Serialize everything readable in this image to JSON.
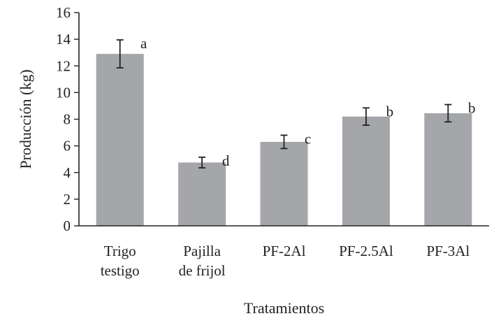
{
  "chart_data": {
    "type": "bar",
    "title": "",
    "xlabel": "Tratamientos",
    "ylabel": "Producción (kg)",
    "ylim": [
      0,
      16
    ],
    "yticks": [
      0,
      2,
      4,
      6,
      8,
      10,
      12,
      14,
      16
    ],
    "grid": false,
    "categories": [
      [
        "Trigo",
        "testigo"
      ],
      [
        "Pajilla",
        "de frijol"
      ],
      [
        "PF-2Al"
      ],
      [
        "PF-2.5Al"
      ],
      [
        "PF-3Al"
      ]
    ],
    "values": [
      12.9,
      4.75,
      6.3,
      8.2,
      8.45
    ],
    "error": [
      1.05,
      0.4,
      0.5,
      0.65,
      0.65
    ],
    "significance_letters": [
      "a",
      "d",
      "c",
      "b",
      "b"
    ],
    "colors": {
      "bar": "#a5a6aa",
      "axis": "#222222",
      "text": "#222222"
    }
  }
}
